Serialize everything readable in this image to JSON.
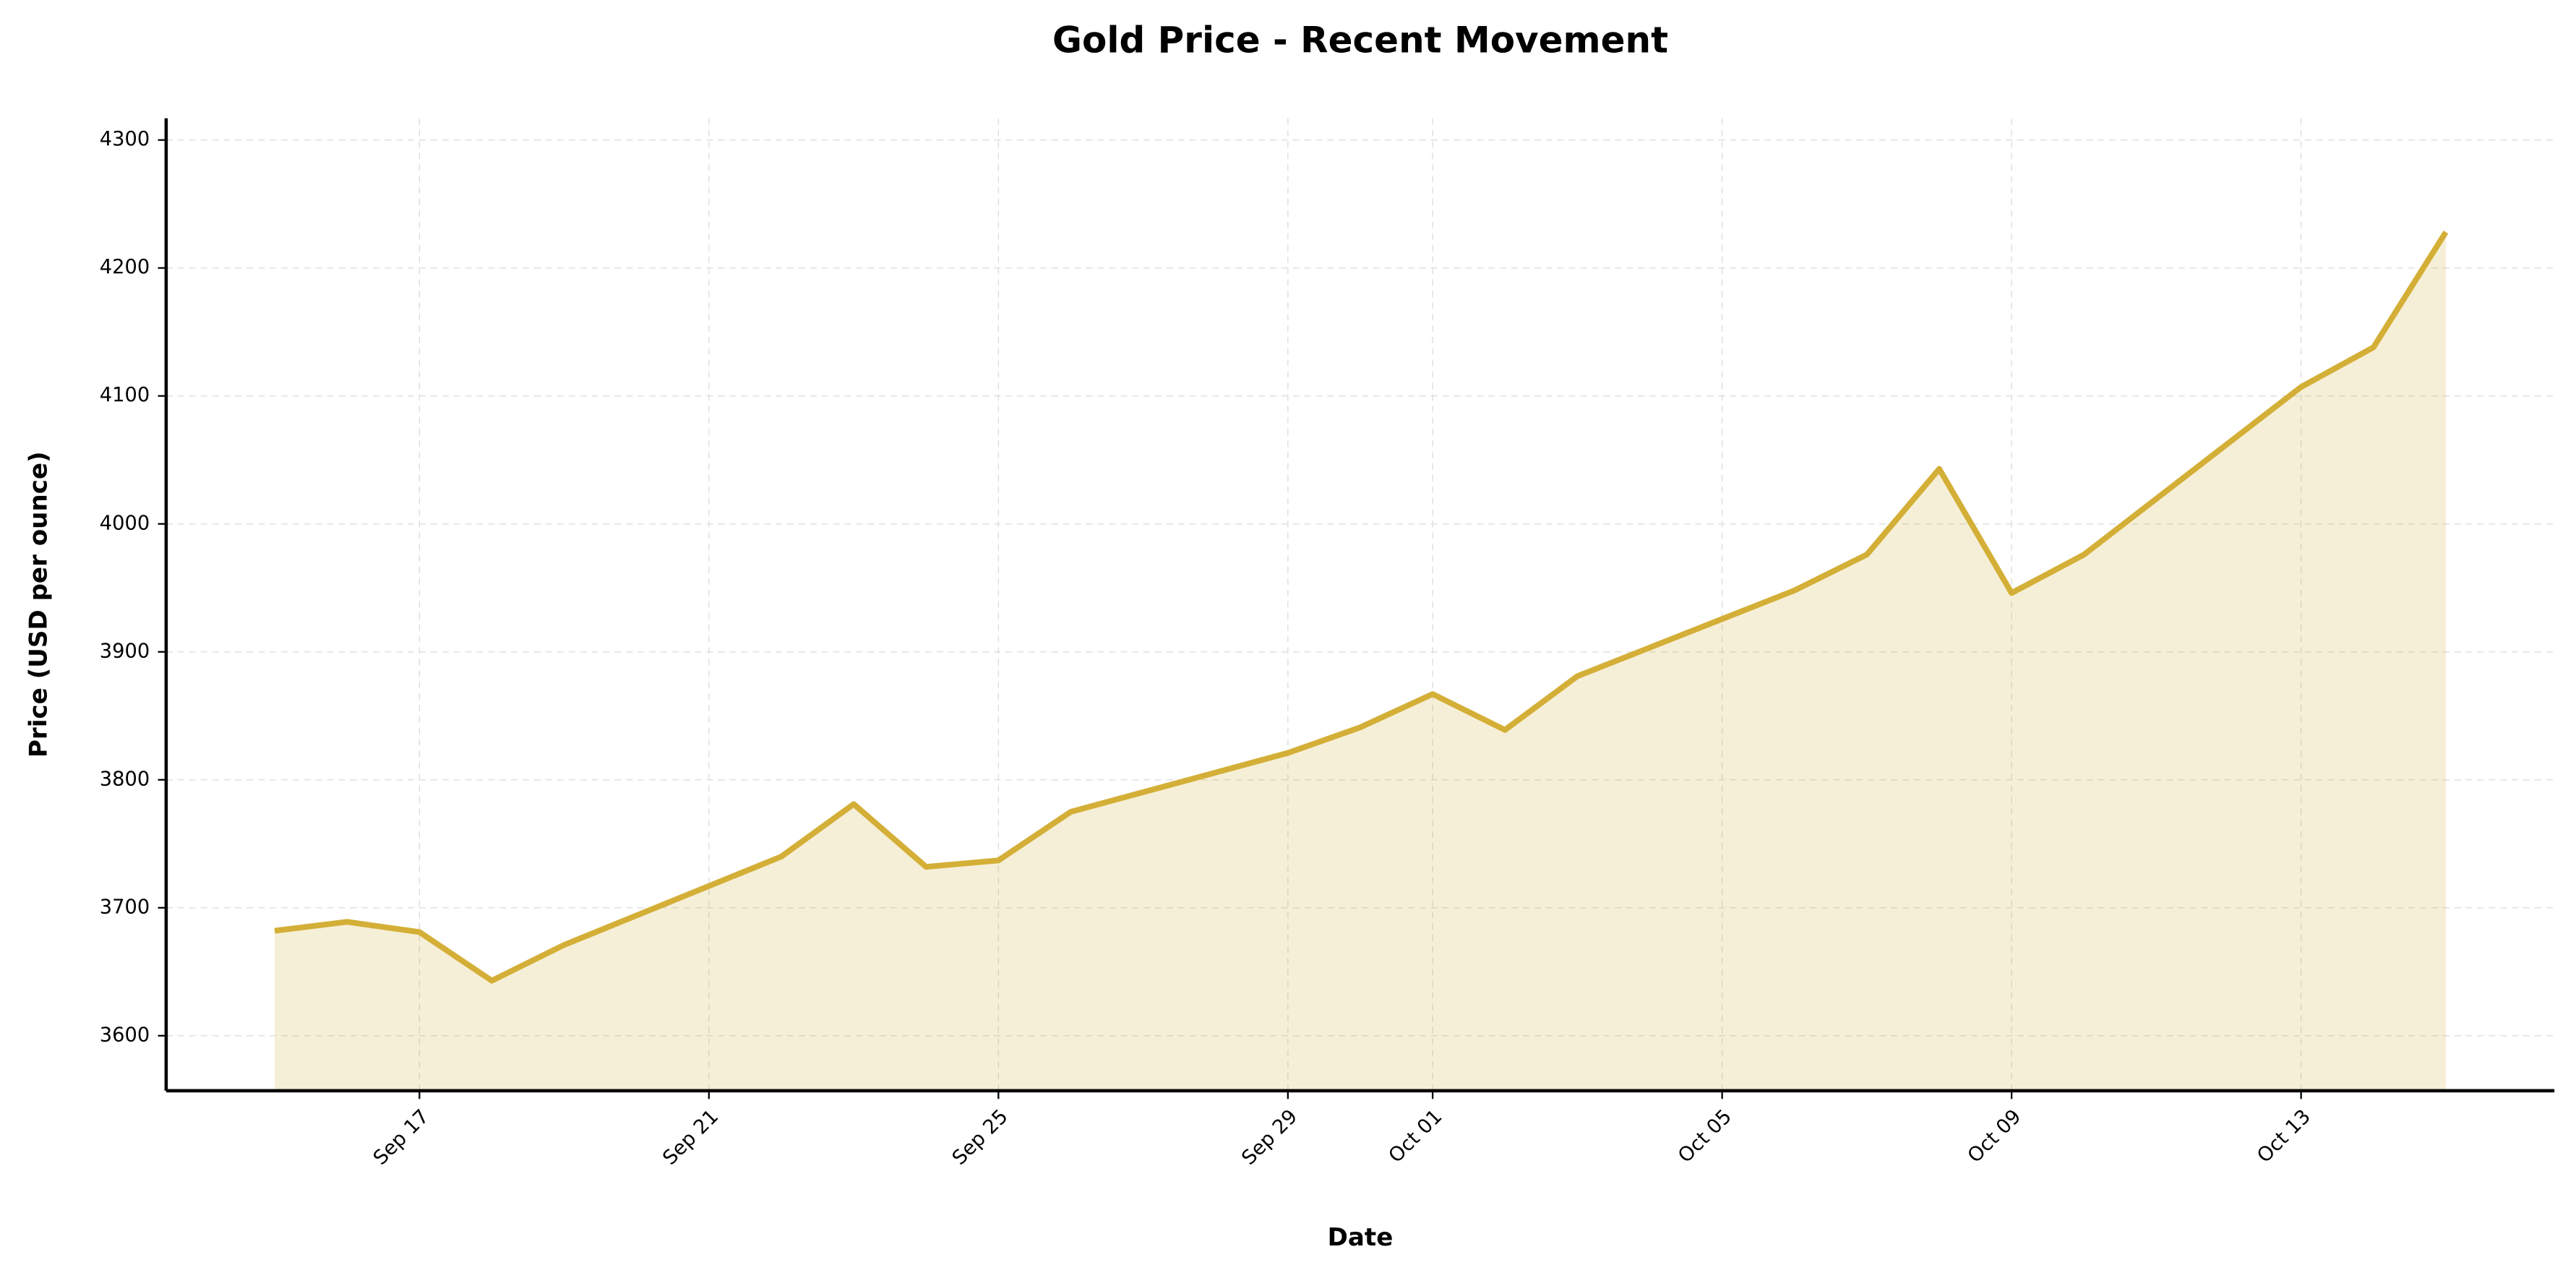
{
  "chart_data": {
    "type": "area",
    "title": "Gold Price - Recent Movement",
    "xlabel": "Date",
    "ylabel": "Price (USD per ounce)",
    "x": [
      "Sep 15",
      "Sep 16",
      "Sep 17",
      "Sep 18",
      "Sep 19",
      "Sep 22",
      "Sep 23",
      "Sep 24",
      "Sep 25",
      "Sep 26",
      "Sep 29",
      "Sep 30",
      "Oct 01",
      "Oct 02",
      "Oct 03",
      "Oct 06",
      "Oct 07",
      "Oct 08",
      "Oct 09",
      "Oct 10",
      "Oct 13",
      "Oct 14",
      "Oct 15"
    ],
    "values": [
      3682,
      3689,
      3681,
      3643,
      3671,
      3740,
      3781,
      3732,
      3737,
      3775,
      3821,
      3841,
      3867,
      3839,
      3881,
      3948,
      3976,
      4043,
      3946,
      3976,
      4107,
      4138,
      4228
    ],
    "color": "#d4af37",
    "xlim": [
      "Sep 13 12:00",
      "Oct 16 12:00"
    ],
    "xticks": [
      "Sep 17",
      "Sep 21",
      "Sep 25",
      "Sep 29",
      "Oct 01",
      "Oct 05",
      "Oct 09",
      "Oct 13"
    ],
    "ylim": [
      3557,
      4317
    ],
    "yticks": [
      3600,
      3700,
      3800,
      3900,
      4000,
      4100,
      4200,
      4300
    ],
    "grid": true
  }
}
